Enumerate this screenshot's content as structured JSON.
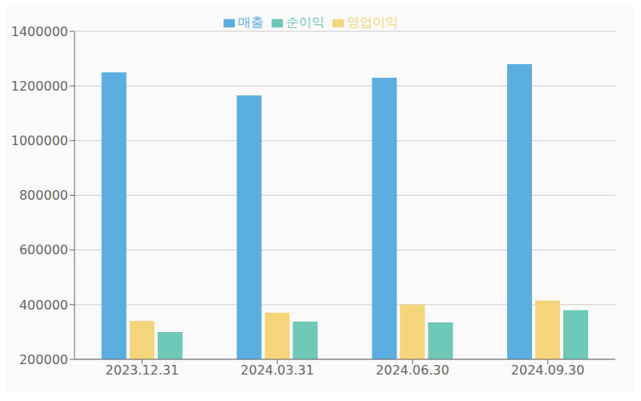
{
  "chart_data": {
    "type": "bar",
    "categories": [
      "2023.12.31",
      "2024.03.31",
      "2024.06.30",
      "2024.09.30"
    ],
    "series": [
      {
        "name": "매출",
        "color": "#5BAEE0",
        "values": [
          1250000,
          1165000,
          1230000,
          1280000
        ]
      },
      {
        "name": "영업이익",
        "color": "#F5D57A",
        "values": [
          340000,
          370000,
          400000,
          415000
        ]
      },
      {
        "name": "순이익",
        "color": "#6DC8B8",
        "values": [
          300000,
          338000,
          335000,
          380000
        ]
      }
    ],
    "ylim": [
      200000,
      1400000
    ],
    "yticks": [
      200000,
      400000,
      600000,
      800000,
      1000000,
      1200000,
      1400000
    ],
    "grid": true,
    "legend": "top"
  }
}
